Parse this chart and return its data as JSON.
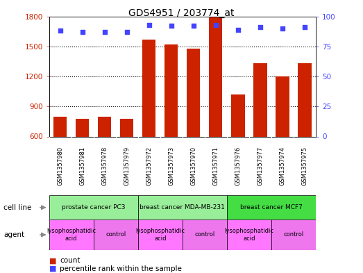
{
  "title": "GDS4951 / 203774_at",
  "samples": [
    "GSM1357980",
    "GSM1357981",
    "GSM1357978",
    "GSM1357979",
    "GSM1357972",
    "GSM1357973",
    "GSM1357970",
    "GSM1357971",
    "GSM1357976",
    "GSM1357977",
    "GSM1357974",
    "GSM1357975"
  ],
  "counts": [
    800,
    775,
    800,
    775,
    1570,
    1520,
    1480,
    1790,
    1020,
    1330,
    1200,
    1330
  ],
  "percentile_ranks": [
    88,
    87,
    87,
    87,
    93,
    92,
    92,
    93,
    89,
    91,
    90,
    91
  ],
  "ylim_left": [
    600,
    1800
  ],
  "ylim_right": [
    0,
    100
  ],
  "yticks_left": [
    600,
    900,
    1200,
    1500,
    1800
  ],
  "yticks_right": [
    0,
    25,
    50,
    75,
    100
  ],
  "bar_color": "#CC2200",
  "dot_color": "#4444FF",
  "bg_color": "#FFFFFF",
  "cell_line_groups": [
    {
      "label": "prostate cancer PC3",
      "start": 0,
      "end": 4,
      "color": "#99EE99"
    },
    {
      "label": "breast cancer MDA-MB-231",
      "start": 4,
      "end": 8,
      "color": "#99EE99"
    },
    {
      "label": "breast cancer MCF7",
      "start": 8,
      "end": 12,
      "color": "#44DD44"
    }
  ],
  "agent_groups": [
    {
      "label": "lysophosphatidic\nacid",
      "start": 0,
      "end": 2,
      "color": "#FF77FF"
    },
    {
      "label": "control",
      "start": 2,
      "end": 4,
      "color": "#EE77EE"
    },
    {
      "label": "lysophosphatidic\nacid",
      "start": 4,
      "end": 6,
      "color": "#FF77FF"
    },
    {
      "label": "control",
      "start": 6,
      "end": 8,
      "color": "#EE77EE"
    },
    {
      "label": "lysophosphatidic\nacid",
      "start": 8,
      "end": 10,
      "color": "#FF77FF"
    },
    {
      "label": "control",
      "start": 10,
      "end": 12,
      "color": "#EE77EE"
    }
  ],
  "sample_bg_color": "#CCCCCC",
  "grid_yticks": [
    900,
    1200,
    1500
  ],
  "left_label_color": "#CC2200",
  "right_label_color": "#4444FF"
}
